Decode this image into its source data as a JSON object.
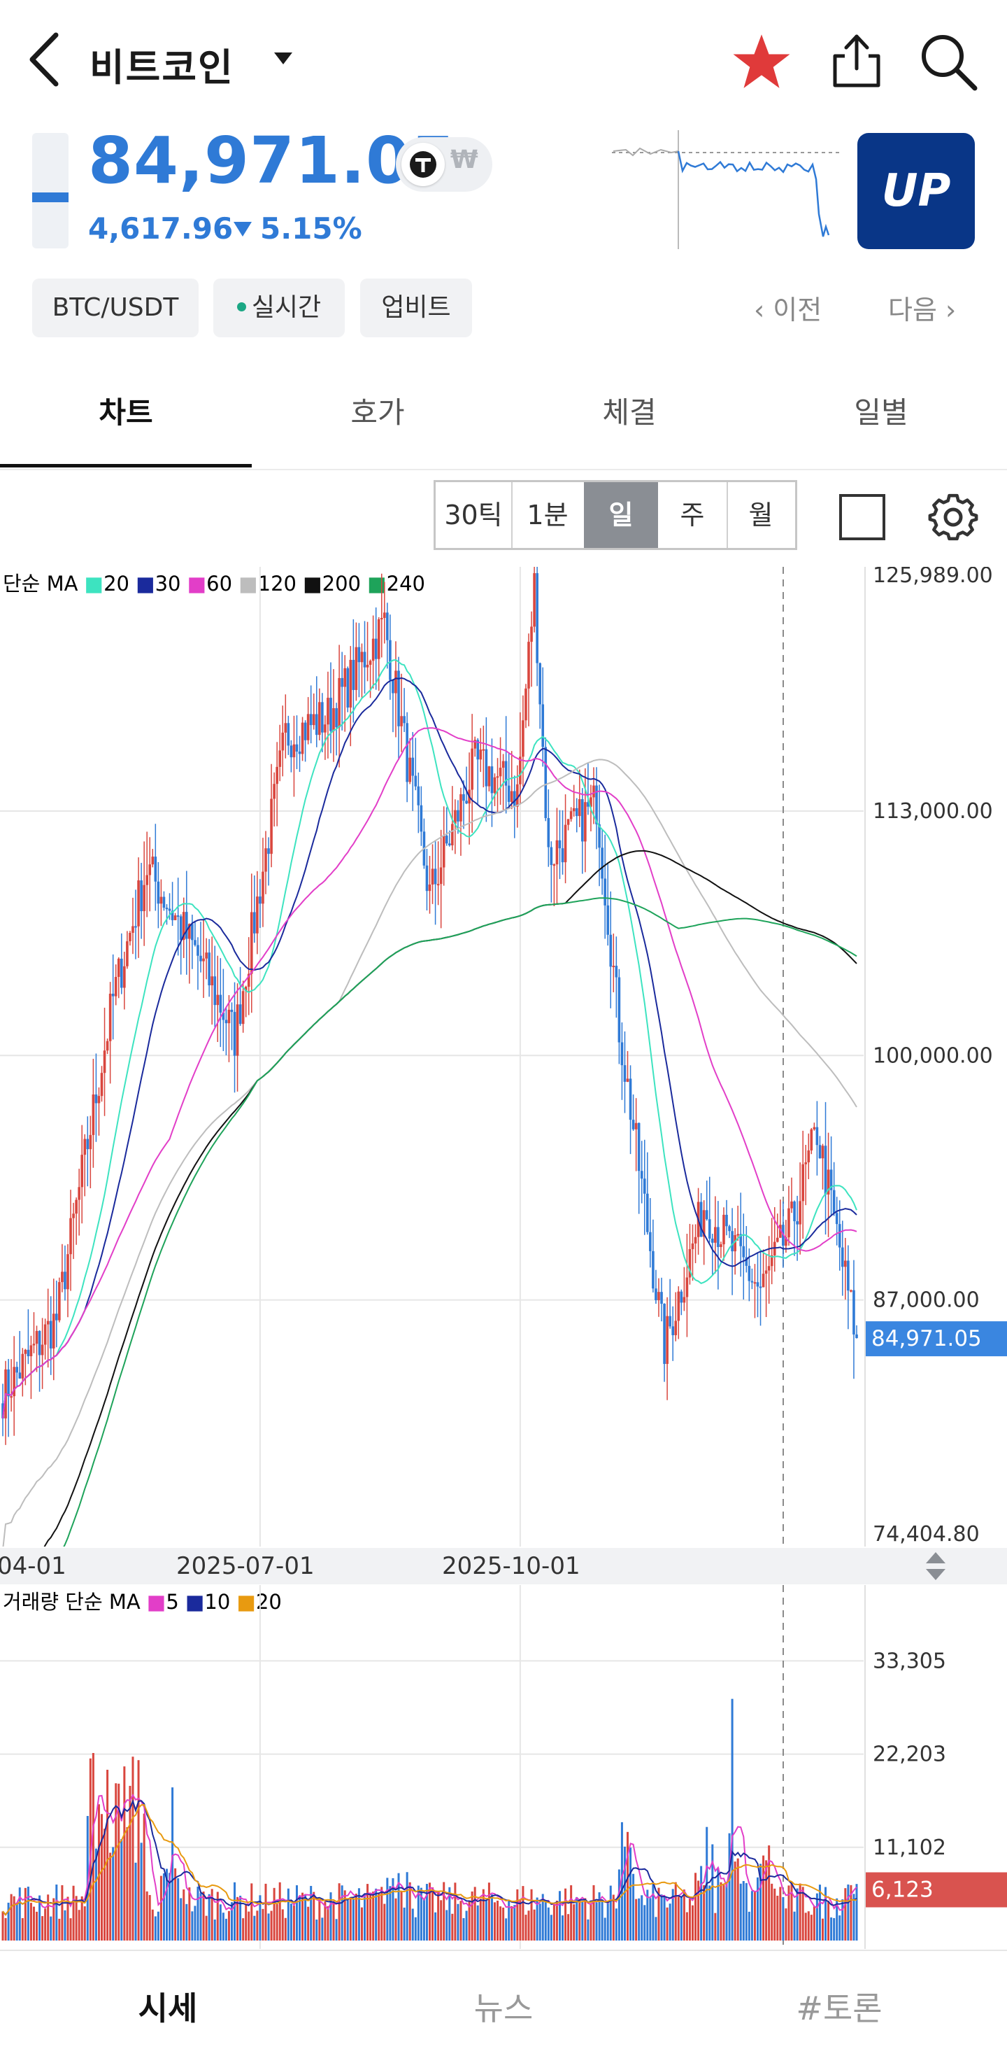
{
  "header": {
    "title": "비트코인",
    "price": "84,971.05",
    "change_amount": "4,617.96",
    "change_percent": "5.15%",
    "won_symbol": "₩",
    "exchange_logo_text": "UP",
    "up_color": "#2f7ad6"
  },
  "chips": {
    "pair": "BTC/USDT",
    "live": "실시간",
    "exchange": "업비트"
  },
  "nav": {
    "prev": "이전",
    "next": "다음"
  },
  "tabs": [
    {
      "label": "차트",
      "active": true
    },
    {
      "label": "호가",
      "active": false
    },
    {
      "label": "체결",
      "active": false
    },
    {
      "label": "일별",
      "active": false
    }
  ],
  "timeframes": [
    {
      "label": "30틱",
      "selected": false
    },
    {
      "label": "1분",
      "selected": false
    },
    {
      "label": "일",
      "selected": true
    },
    {
      "label": "주",
      "selected": false
    },
    {
      "label": "월",
      "selected": false
    }
  ],
  "price_legend": {
    "prefix": "단순 MA",
    "items": [
      {
        "label": "20",
        "color": "#3de3c0"
      },
      {
        "label": "30",
        "color": "#1a2a9c"
      },
      {
        "label": "60",
        "color": "#e23ec8"
      },
      {
        "label": "120",
        "color": "#bdbdbd"
      },
      {
        "label": "200",
        "color": "#111111"
      },
      {
        "label": "240",
        "color": "#1ea35a"
      }
    ]
  },
  "volume_legend": {
    "prefix": "거래량 단순 MA",
    "items": [
      {
        "label": "5",
        "color": "#e23ec8"
      },
      {
        "label": "10",
        "color": "#1a2a9c"
      },
      {
        "label": "20",
        "color": "#e89a10"
      }
    ]
  },
  "price_axis": [
    "125,989.00",
    "113,000.00",
    "100,000.00",
    "87,000.00",
    "74,404.80"
  ],
  "current_price_tag": "84,971.05",
  "volume_axis": [
    "33,305",
    "22,203",
    "11,102"
  ],
  "current_volume_tag": "6,123",
  "date_labels": [
    "04-01",
    "2025-07-01",
    "2025-10-01"
  ],
  "bottom_nav": [
    {
      "label": "시세",
      "active": true
    },
    {
      "label": "뉴스",
      "active": false
    },
    {
      "label": "#토론",
      "active": false
    }
  ],
  "chart_data": {
    "type": "candlestick",
    "ylim": [
      74404.8,
      125989.0
    ],
    "y_ticks": [
      113000,
      100000,
      87000
    ],
    "x_ticks": [
      "04-01",
      "2025-07-01",
      "2025-10-01"
    ],
    "last_close": 84971.05,
    "close_path": [
      {
        "date": "2025-04-01",
        "close": 82000
      },
      {
        "date": "2025-04-20",
        "close": 86000
      },
      {
        "date": "2025-05-10",
        "close": 103000
      },
      {
        "date": "2025-05-22",
        "close": 110000
      },
      {
        "date": "2025-06-10",
        "close": 105000
      },
      {
        "date": "2025-06-22",
        "close": 101000
      },
      {
        "date": "2025-07-10",
        "close": 117000
      },
      {
        "date": "2025-07-25",
        "close": 118000
      },
      {
        "date": "2025-08-14",
        "close": 123000
      },
      {
        "date": "2025-08-30",
        "close": 108500
      },
      {
        "date": "2025-09-15",
        "close": 115500
      },
      {
        "date": "2025-09-30",
        "close": 114000
      },
      {
        "date": "2025-10-06",
        "close": 125000
      },
      {
        "date": "2025-10-11",
        "close": 110500
      },
      {
        "date": "2025-10-28",
        "close": 113500
      },
      {
        "date": "2025-11-05",
        "close": 101500
      },
      {
        "date": "2025-11-21",
        "close": 84500
      },
      {
        "date": "2025-12-05",
        "close": 92000
      },
      {
        "date": "2025-12-25",
        "close": 87500
      },
      {
        "date": "2026-01-05",
        "close": 91000
      },
      {
        "date": "2026-01-14",
        "close": 96000
      },
      {
        "date": "2026-01-28",
        "close": 84971
      }
    ],
    "volume_ylim": [
      0,
      40000
    ],
    "volume_ticks": [
      33305,
      22203,
      11102
    ],
    "last_volume": 6123
  }
}
